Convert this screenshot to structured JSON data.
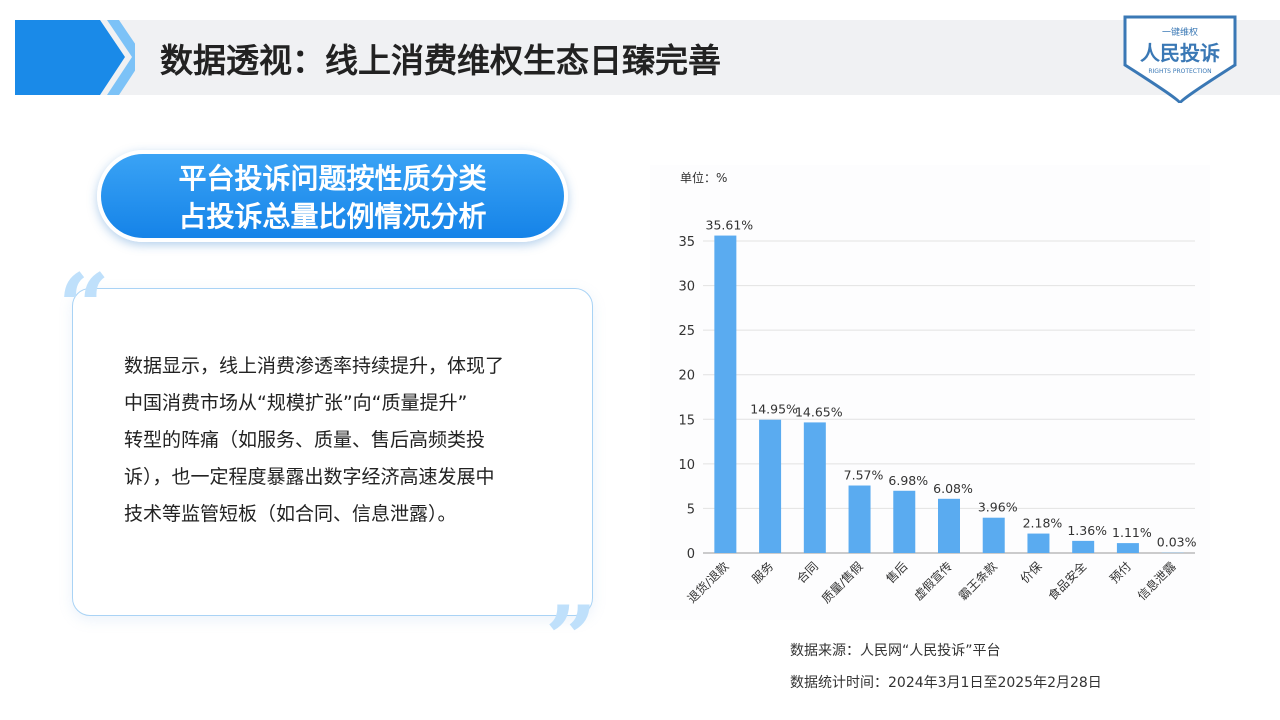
{
  "header": {
    "title": "数据透视：线上消费维权生态日臻完善"
  },
  "logo": {
    "top": "一键维权",
    "main": "人民投诉",
    "sub": "RIGHTS PROTECTION"
  },
  "subtitle": {
    "lines": [
      "平台投诉问题按性质分类",
      "占投诉总量比例情况分析"
    ]
  },
  "panel": {
    "lines": [
      "数据显示，线上消费渗透率持续提升，体现了",
      "中国消费市场从“规模扩张”向“质量提升”",
      "转型的阵痛（如服务、质量、售后高频类投",
      "诉），也一定程度暴露出数字经济高速发展中",
      "技术等监管短板（如合同、信息泄露）。"
    ]
  },
  "chart_data": {
    "type": "bar",
    "unit": "单位：%",
    "categories": [
      "退货/退款",
      "服务",
      "合同",
      "质量/售假",
      "售后",
      "虚假宣传",
      "霸王条款",
      "价保",
      "食品安全",
      "预付",
      "信息泄露"
    ],
    "values": [
      35.61,
      14.95,
      14.65,
      7.57,
      6.98,
      6.08,
      3.96,
      2.18,
      1.36,
      1.11,
      0.03
    ],
    "value_labels": [
      "35.61%",
      "14.95%",
      "14.65%",
      "7.57%",
      "6.98%",
      "6.08%",
      "3.96%",
      "2.18%",
      "1.36%",
      "1.11%",
      "0.03%"
    ],
    "color": "#5aabf0",
    "ylim": [
      0,
      38
    ],
    "yticks": [
      0,
      5,
      10,
      15,
      20,
      25,
      30,
      35
    ],
    "grid": true
  },
  "footer": {
    "source": "数据来源：人民网“人民投诉”平台",
    "period": "数据统计时间：2024年3月1日至2025年2月28日"
  }
}
